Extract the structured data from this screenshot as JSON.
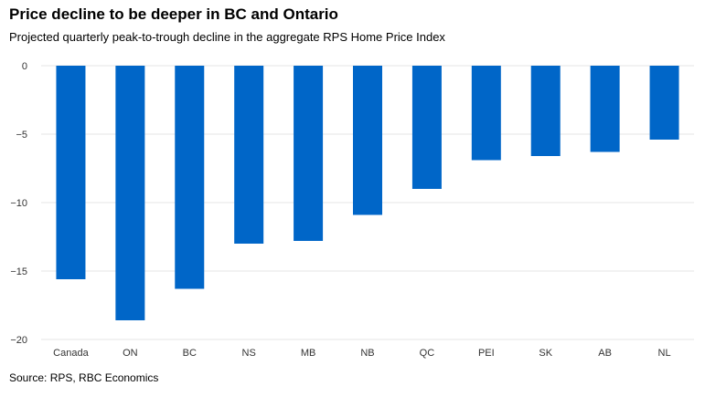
{
  "title": "Price decline to be deeper in BC and Ontario",
  "subtitle": "Projected quarterly peak-to-trough decline in the aggregate RPS Home Price Index",
  "source": "Source: RPS, RBC Economics",
  "colors": {
    "bar": "#0066c8",
    "grid": "#e6e6e6"
  },
  "chart_data": {
    "type": "bar",
    "categories": [
      "Canada",
      "ON",
      "BC",
      "NS",
      "MB",
      "NB",
      "QC",
      "PEI",
      "SK",
      "AB",
      "NL"
    ],
    "values": [
      -15.6,
      -18.6,
      -16.3,
      -13.0,
      -12.8,
      -10.9,
      -9.0,
      -6.9,
      -6.6,
      -6.3,
      -5.4
    ],
    "yticks": [
      0,
      -5,
      -10,
      -15,
      -20
    ],
    "ylim": [
      -20,
      0
    ],
    "grid": true,
    "legend": false
  }
}
